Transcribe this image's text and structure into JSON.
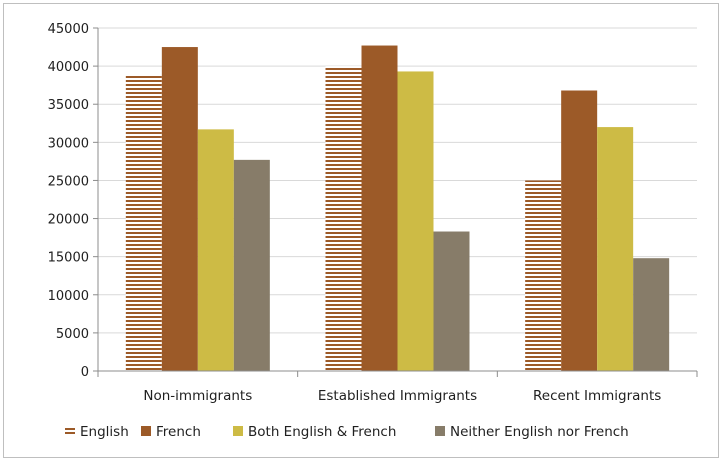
{
  "chart_data": {
    "type": "bar",
    "title": "",
    "xlabel": "",
    "ylabel": "",
    "categories": [
      "Non-immigrants",
      "Established Immigrants",
      "Recent Immigrants"
    ],
    "series": [
      {
        "name": "English",
        "values": [
          38800,
          40000,
          25000
        ],
        "color": "#9c5a28",
        "pattern": "horizontal-stripes"
      },
      {
        "name": "French",
        "values": [
          42500,
          42700,
          36800
        ],
        "color": "#9c5a28",
        "pattern": "solid"
      },
      {
        "name": "Both English & French",
        "values": [
          31700,
          39300,
          32000
        ],
        "color": "#cdbb45",
        "pattern": "solid"
      },
      {
        "name": "Neither English nor French",
        "values": [
          27700,
          18300,
          14800
        ],
        "color": "#877c69",
        "pattern": "solid"
      }
    ],
    "ylim": [
      0,
      45000
    ],
    "yticks": [
      0,
      5000,
      10000,
      15000,
      20000,
      25000,
      30000,
      35000,
      40000,
      45000
    ],
    "grid": true,
    "legend_position": "bottom"
  }
}
